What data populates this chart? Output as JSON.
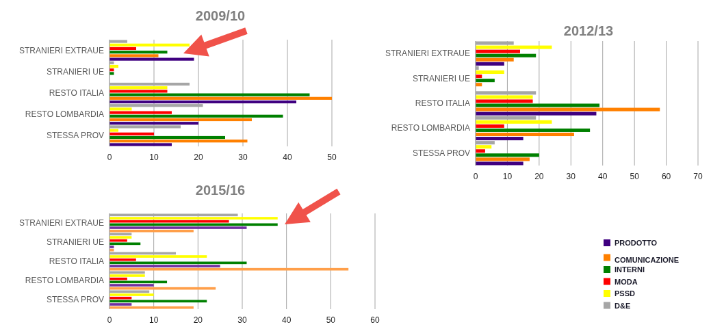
{
  "chart_data": [
    {
      "type": "bar",
      "orientation": "horizontal",
      "title": "2009/10",
      "categories": [
        "STRANIERI EXTRAUE",
        "STRANIERI UE",
        "RESTO ITALIA",
        "RESTO LOMBARDIA",
        "STESSA PROV"
      ],
      "xlim": [
        0,
        50
      ],
      "xticks": [
        0,
        10,
        20,
        30,
        40,
        50
      ],
      "grid": "x",
      "series": [
        {
          "color": "#3f0080",
          "values": [
            19,
            0,
            42,
            20,
            14
          ]
        },
        {
          "color": "#ff8000",
          "values": [
            11,
            0,
            50,
            32,
            31
          ]
        },
        {
          "color": "#008000",
          "values": [
            13,
            1,
            45,
            39,
            26
          ]
        },
        {
          "color": "#ff0000",
          "values": [
            6,
            1,
            13,
            14,
            10
          ]
        },
        {
          "color": "#ffff00",
          "values": [
            18,
            2,
            13,
            5,
            2
          ]
        },
        {
          "color": "#a6a6a6",
          "values": [
            4,
            1,
            18,
            21,
            16
          ]
        }
      ]
    },
    {
      "type": "bar",
      "orientation": "horizontal",
      "title": "2012/13",
      "categories": [
        "STRANIERI EXTRAUE",
        "STRANIERI UE",
        "RESTO ITALIA",
        "RESTO LOMBARDIA",
        "STESSA PROV"
      ],
      "xlim": [
        0,
        70
      ],
      "xticks": [
        0,
        10,
        20,
        30,
        40,
        50,
        60,
        70
      ],
      "grid": "x",
      "legend": "bottom right",
      "series": [
        {
          "name": "PRODOTTO",
          "color": "#3f0080",
          "values": [
            9,
            0,
            38,
            15,
            15
          ]
        },
        {
          "name": "COMUNICAZIONE",
          "color": "#ff8000",
          "values": [
            12,
            2,
            58,
            31,
            17
          ]
        },
        {
          "name": "INTERNI",
          "color": "#008000",
          "values": [
            19,
            6,
            39,
            36,
            20
          ]
        },
        {
          "name": "MODA",
          "color": "#ff0000",
          "values": [
            14,
            2,
            18,
            9,
            3
          ]
        },
        {
          "name": "PSSD",
          "color": "#ffff00",
          "values": [
            24,
            9,
            18,
            24,
            5
          ]
        },
        {
          "name": "D&E",
          "color": "#a6a6a6",
          "values": [
            12,
            1,
            19,
            19,
            6
          ]
        }
      ]
    },
    {
      "type": "bar",
      "orientation": "horizontal",
      "title": "2015/16",
      "categories": [
        "STRANIERI EXTRAUE",
        "STRANIERI UE",
        "RESTO ITALIA",
        "RESTO LOMBARDIA",
        "STESSA PROV"
      ],
      "xlim": [
        0,
        60
      ],
      "xticks": [
        0,
        10,
        20,
        30,
        40,
        50,
        60
      ],
      "grid": "x",
      "series": [
        {
          "color": "#ff9f4a",
          "values": [
            19,
            1,
            54,
            24,
            19
          ]
        },
        {
          "color": "#7030a0",
          "values": [
            31,
            1,
            25,
            10,
            5
          ]
        },
        {
          "color": "#008000",
          "values": [
            38,
            7,
            31,
            13,
            22
          ]
        },
        {
          "color": "#ff0000",
          "values": [
            27,
            4,
            6,
            4,
            5
          ]
        },
        {
          "color": "#ffff00",
          "values": [
            38,
            5,
            22,
            8,
            10
          ]
        },
        {
          "color": "#a6a6a6",
          "values": [
            29,
            5,
            15,
            8,
            9
          ]
        }
      ]
    }
  ]
}
